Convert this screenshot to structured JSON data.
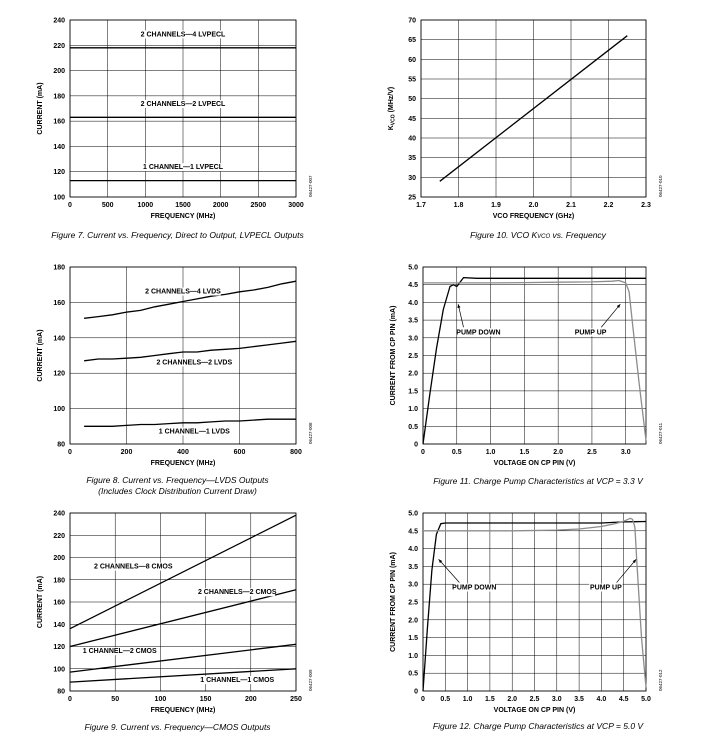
{
  "charts": [
    {
      "type": "line",
      "title": "Figure 7. Current vs. Frequency, Direct to Output, LVPECL Outputs",
      "xlabel": "FREQUENCY (MHz)",
      "ylabel": "CURRENT (mA)",
      "xlim": [
        0,
        3000
      ],
      "ylim": [
        100,
        240
      ],
      "xticks": [
        0,
        500,
        1000,
        1500,
        2000,
        2500,
        3000
      ],
      "yticks": [
        100,
        120,
        140,
        160,
        180,
        200,
        220,
        240
      ],
      "xtick_labels": [
        "0",
        "500",
        "1000",
        "1500",
        "2000",
        "2500",
        "3000"
      ],
      "ytick_labels": [
        "100",
        "120",
        "140",
        "160",
        "180",
        "200",
        "220",
        "240"
      ],
      "grid": true,
      "code": "06427-007",
      "series": [
        {
          "name": "2 CHANNELS—4 LVPECL",
          "x": [
            0,
            3000
          ],
          "y": [
            218,
            218
          ],
          "label_x": 1500,
          "label_y": 227
        },
        {
          "name": "2 CHANNELS—2 LVPECL",
          "x": [
            0,
            3000
          ],
          "y": [
            163,
            163
          ],
          "label_x": 1500,
          "label_y": 172
        },
        {
          "name": "1 CHANNEL—1 LVPECL",
          "x": [
            0,
            3000
          ],
          "y": [
            113,
            113
          ],
          "label_x": 1500,
          "label_y": 122
        }
      ]
    },
    {
      "type": "line",
      "title": "Figure 8. Current vs. Frequency—LVDS Outputs",
      "subtitle": "(Includes Clock Distribution Current Draw)",
      "xlabel": "FREQUENCY (MHz)",
      "ylabel": "CURRENT (mA)",
      "xlim": [
        0,
        800
      ],
      "ylim": [
        80,
        180
      ],
      "xticks": [
        0,
        200,
        400,
        600,
        800
      ],
      "yticks": [
        80,
        100,
        120,
        140,
        160,
        180
      ],
      "xtick_labels": [
        "0",
        "200",
        "400",
        "600",
        "800"
      ],
      "ytick_labels": [
        "80",
        "100",
        "120",
        "140",
        "160",
        "180"
      ],
      "grid": true,
      "code": "06427-008",
      "series": [
        {
          "name": "2 CHANNELS—4 LVDS",
          "x": [
            50,
            100,
            150,
            200,
            250,
            300,
            350,
            400,
            450,
            500,
            550,
            600,
            650,
            700,
            750,
            800
          ],
          "y": [
            151,
            152,
            153,
            154.5,
            155.5,
            157.5,
            159,
            160.5,
            162,
            163.5,
            164.5,
            166,
            167,
            168.5,
            170.5,
            172
          ],
          "label_x": 400,
          "label_y": 165
        },
        {
          "name": "2 CHANNELS—2 LVDS",
          "x": [
            50,
            100,
            150,
            200,
            250,
            300,
            350,
            400,
            450,
            500,
            550,
            600,
            650,
            700,
            750,
            800
          ],
          "y": [
            127,
            128,
            128,
            128.5,
            129,
            130,
            131,
            132,
            132,
            133,
            133.5,
            134,
            135,
            136,
            137,
            138
          ],
          "label_x": 440,
          "label_y": 125
        },
        {
          "name": "1 CHANNEL—1 LVDS",
          "x": [
            50,
            100,
            150,
            200,
            250,
            300,
            350,
            400,
            450,
            500,
            550,
            600,
            650,
            700,
            750,
            800
          ],
          "y": [
            90,
            90,
            90,
            90.5,
            91,
            91,
            91.5,
            92,
            92,
            92.5,
            93,
            93,
            93.5,
            94,
            94,
            94
          ],
          "label_x": 440,
          "label_y": 86
        }
      ]
    },
    {
      "type": "line",
      "title": "Figure 9. Current vs. Frequency—CMOS Outputs",
      "xlabel": "FREQUENCY (MHz)",
      "ylabel": "CURRENT (mA)",
      "xlim": [
        0,
        250
      ],
      "ylim": [
        80,
        240
      ],
      "xticks": [
        0,
        50,
        100,
        150,
        200,
        250
      ],
      "yticks": [
        80,
        100,
        120,
        140,
        160,
        180,
        200,
        220,
        240
      ],
      "xtick_labels": [
        "0",
        "50",
        "100",
        "150",
        "200",
        "250"
      ],
      "ytick_labels": [
        "80",
        "100",
        "120",
        "140",
        "160",
        "180",
        "200",
        "220",
        "240"
      ],
      "grid": true,
      "code": "06427-009",
      "series": [
        {
          "name": "2 CHANNELS—8 CMOS",
          "x": [
            0,
            250
          ],
          "y": [
            136,
            238
          ],
          "label_x": 70,
          "label_y": 190
        },
        {
          "name": "2 CHANNELS—2 CMOS",
          "x": [
            0,
            250
          ],
          "y": [
            120,
            171
          ],
          "label_x": 185,
          "label_y": 167
        },
        {
          "name": "1 CHANNEL—2 CMOS",
          "x": [
            0,
            250
          ],
          "y": [
            97,
            122
          ],
          "label_x": 55,
          "label_y": 114
        },
        {
          "name": "1 CHANNEL—1 CMOS",
          "x": [
            0,
            250
          ],
          "y": [
            88,
            100
          ],
          "label_x": 185,
          "label_y": 88
        }
      ]
    },
    {
      "type": "line",
      "title": "Figure 10. VCO KVCO vs. Frequency",
      "title_parts": [
        "Figure 10. VCO ",
        "K",
        "VCO",
        " vs. Frequency"
      ],
      "xlabel": "VCO FREQUENCY (GHz)",
      "ylabel_parts": [
        "K",
        "VCO",
        " (MHz/V)"
      ],
      "xlim": [
        1.7,
        2.3
      ],
      "ylim": [
        25,
        70
      ],
      "xticks": [
        1.7,
        1.8,
        1.9,
        2.0,
        2.1,
        2.2,
        2.3
      ],
      "yticks": [
        25,
        30,
        35,
        40,
        45,
        50,
        55,
        60,
        65,
        70
      ],
      "xtick_labels": [
        "1.7",
        "1.8",
        "1.9",
        "2.0",
        "2.1",
        "2.2",
        "2.3"
      ],
      "ytick_labels": [
        "25",
        "30",
        "35",
        "40",
        "45",
        "50",
        "55",
        "60",
        "65",
        "70"
      ],
      "grid": true,
      "code": "06427-010",
      "series": [
        {
          "name": "KVCO",
          "x": [
            1.75,
            2.25
          ],
          "y": [
            29,
            66
          ]
        }
      ]
    },
    {
      "type": "line",
      "title": "Figure 11. Charge Pump Characteristics at VCP = 3.3 V",
      "xlabel": "VOLTAGE ON CP PIN (V)",
      "ylabel": "CURRENT FROM CP PIN (mA)",
      "xlim": [
        0,
        3.3
      ],
      "ylim": [
        0,
        5.0
      ],
      "xticks": [
        0,
        0.5,
        1.0,
        1.5,
        2.0,
        2.5,
        3.0
      ],
      "yticks": [
        0,
        0.5,
        1.0,
        1.5,
        2.0,
        2.5,
        3.0,
        3.5,
        4.0,
        4.5,
        5.0
      ],
      "xtick_labels": [
        "0",
        "0.5",
        "1.0",
        "1.5",
        "2.0",
        "2.5",
        "3.0"
      ],
      "ytick_labels": [
        "0",
        "0.5",
        "1.0",
        "1.5",
        "2.0",
        "2.5",
        "3.0",
        "3.5",
        "4.0",
        "4.5",
        "5.0"
      ],
      "grid": true,
      "code": "06427-011",
      "annotations": [
        {
          "text": "PUMP DOWN",
          "x": 0.82,
          "y": 3.1,
          "ax": 0.52,
          "ay": 3.95
        },
        {
          "text": "PUMP UP",
          "x": 2.48,
          "y": 3.1,
          "ax": 2.92,
          "ay": 3.95
        }
      ],
      "series": [
        {
          "name": "PUMP DOWN",
          "color": "#000000",
          "x": [
            0.0,
            0.1,
            0.2,
            0.3,
            0.4,
            0.45,
            0.5,
            0.6,
            0.8,
            1.0,
            1.5,
            2.0,
            2.5,
            3.0,
            3.3
          ],
          "y": [
            0.0,
            1.4,
            2.7,
            3.8,
            4.45,
            4.5,
            4.45,
            4.7,
            4.68,
            4.68,
            4.68,
            4.68,
            4.68,
            4.68,
            4.68
          ]
        },
        {
          "name": "PUMP UP",
          "color": "#8c8c8c",
          "x": [
            0.0,
            0.5,
            1.0,
            1.5,
            2.0,
            2.5,
            2.8,
            2.9,
            3.0,
            3.05,
            3.1,
            3.2,
            3.3
          ],
          "y": [
            4.55,
            4.55,
            4.55,
            4.56,
            4.57,
            4.58,
            4.6,
            4.62,
            4.55,
            4.3,
            3.4,
            1.7,
            0.1
          ]
        }
      ]
    },
    {
      "type": "line",
      "title": "Figure 12. Charge Pump Characteristics at VCP = 5.0 V",
      "xlabel": "VOLTAGE ON CP PIN (V)",
      "ylabel": "CURRENT FROM CP PIN (mA)",
      "xlim": [
        0,
        5.0
      ],
      "ylim": [
        0,
        5.0
      ],
      "xticks": [
        0,
        0.5,
        1.0,
        1.5,
        2.0,
        2.5,
        3.0,
        3.5,
        4.0,
        4.5,
        5.0
      ],
      "yticks": [
        0,
        0.5,
        1.0,
        1.5,
        2.0,
        2.5,
        3.0,
        3.5,
        4.0,
        4.5,
        5.0
      ],
      "xtick_labels": [
        "0",
        "0.5",
        "1.0",
        "1.5",
        "2.0",
        "2.5",
        "3.0",
        "3.5",
        "4.0",
        "4.5",
        "5.0"
      ],
      "ytick_labels": [
        "0",
        "0.5",
        "1.0",
        "1.5",
        "2.0",
        "2.5",
        "3.0",
        "3.5",
        "4.0",
        "4.5",
        "5.0"
      ],
      "grid": true,
      "code": "06427-012",
      "annotations": [
        {
          "text": "PUMP DOWN",
          "x": 1.15,
          "y": 2.85,
          "ax": 0.35,
          "ay": 3.7
        },
        {
          "text": "PUMP UP",
          "x": 4.1,
          "y": 2.85,
          "ax": 4.78,
          "ay": 3.7
        }
      ],
      "series": [
        {
          "name": "PUMP DOWN",
          "color": "#000000",
          "x": [
            0.0,
            0.1,
            0.2,
            0.3,
            0.4,
            0.5,
            1.0,
            2.0,
            3.0,
            4.0,
            4.5,
            5.0
          ],
          "y": [
            0.0,
            1.8,
            3.4,
            4.4,
            4.7,
            4.72,
            4.72,
            4.72,
            4.72,
            4.72,
            4.75,
            4.76
          ]
        },
        {
          "name": "PUMP UP",
          "color": "#8c8c8c",
          "x": [
            0.0,
            1.0,
            2.0,
            3.0,
            3.5,
            4.0,
            4.3,
            4.5,
            4.65,
            4.7,
            4.75,
            4.8,
            4.9,
            5.0
          ],
          "y": [
            4.5,
            4.5,
            4.5,
            4.52,
            4.55,
            4.62,
            4.7,
            4.77,
            4.85,
            4.82,
            4.6,
            3.5,
            1.5,
            0.1
          ]
        }
      ]
    }
  ]
}
